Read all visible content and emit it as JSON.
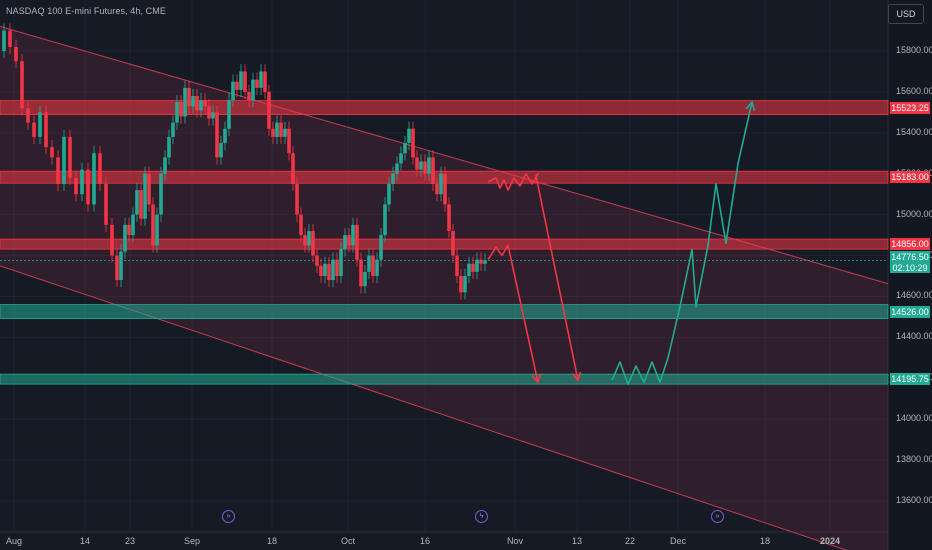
{
  "header": {
    "symbol_title": "NASDAQ 100 E-mini Futures, 4h, CME",
    "currency_button": "USD"
  },
  "colors": {
    "background": "#161a25",
    "bear": "#f23645",
    "bull": "#22ab94",
    "channel": "#b73a4f",
    "text": "#b2b5be"
  },
  "events": [
    {
      "icon": "earnings-icon",
      "glyph": "»"
    },
    {
      "icon": "flash-icon",
      "glyph": "ϟ"
    },
    {
      "icon": "earnings-icon",
      "glyph": "»"
    }
  ],
  "chart_data": {
    "type": "candlestick",
    "symbol": "NASDAQ 100 E-mini Futures",
    "timeframe": "4h",
    "exchange": "CME",
    "ylim": [
      13600,
      15950
    ],
    "y_ticks": [
      "15800.00",
      "15600.00",
      "15400.00",
      "15200.00",
      "15000.00",
      "14800.00",
      "14600.00",
      "14400.00",
      "14200.00",
      "14000.00",
      "13800.00",
      "13600.00"
    ],
    "x_ticks": [
      "Aug",
      "14",
      "23",
      "Sep",
      "18",
      "Oct",
      "16",
      "Nov",
      "13",
      "22",
      "Dec",
      "18",
      "2024"
    ],
    "price_path": [
      [
        0,
        15800
      ],
      [
        6,
        15900
      ],
      [
        12,
        15820
      ],
      [
        18,
        15750
      ],
      [
        24,
        15520
      ],
      [
        30,
        15450
      ],
      [
        36,
        15380
      ],
      [
        42,
        15500
      ],
      [
        48,
        15330
      ],
      [
        54,
        15280
      ],
      [
        60,
        15150
      ],
      [
        66,
        15380
      ],
      [
        72,
        15180
      ],
      [
        78,
        15100
      ],
      [
        84,
        15220
      ],
      [
        90,
        15050
      ],
      [
        96,
        15300
      ],
      [
        102,
        15150
      ],
      [
        108,
        14950
      ],
      [
        114,
        14800
      ],
      [
        118,
        14680
      ],
      [
        122,
        14820
      ],
      [
        126,
        14950
      ],
      [
        130,
        14900
      ],
      [
        134,
        15000
      ],
      [
        138,
        15120
      ],
      [
        142,
        14980
      ],
      [
        146,
        15200
      ],
      [
        150,
        15050
      ],
      [
        154,
        14850
      ],
      [
        158,
        15000
      ],
      [
        162,
        15200
      ],
      [
        166,
        15280
      ],
      [
        170,
        15380
      ],
      [
        174,
        15450
      ],
      [
        178,
        15550
      ],
      [
        182,
        15480
      ],
      [
        186,
        15620
      ],
      [
        190,
        15530
      ],
      [
        194,
        15580
      ],
      [
        198,
        15510
      ],
      [
        202,
        15560
      ],
      [
        206,
        15530
      ],
      [
        210,
        15470
      ],
      [
        214,
        15500
      ],
      [
        218,
        15280
      ],
      [
        222,
        15350
      ],
      [
        226,
        15420
      ],
      [
        230,
        15560
      ],
      [
        234,
        15650
      ],
      [
        238,
        15610
      ],
      [
        242,
        15700
      ],
      [
        246,
        15600
      ],
      [
        250,
        15560
      ],
      [
        254,
        15660
      ],
      [
        258,
        15620
      ],
      [
        262,
        15700
      ],
      [
        266,
        15600
      ],
      [
        270,
        15420
      ],
      [
        274,
        15380
      ],
      [
        278,
        15450
      ],
      [
        282,
        15380
      ],
      [
        286,
        15420
      ],
      [
        290,
        15300
      ],
      [
        294,
        15150
      ],
      [
        298,
        15000
      ],
      [
        302,
        14900
      ],
      [
        306,
        14850
      ],
      [
        310,
        14920
      ],
      [
        314,
        14800
      ],
      [
        318,
        14750
      ],
      [
        322,
        14700
      ],
      [
        326,
        14760
      ],
      [
        330,
        14680
      ],
      [
        334,
        14780
      ],
      [
        338,
        14700
      ],
      [
        342,
        14830
      ],
      [
        346,
        14900
      ],
      [
        350,
        14850
      ],
      [
        354,
        14950
      ],
      [
        358,
        14780
      ],
      [
        362,
        14650
      ],
      [
        366,
        14720
      ],
      [
        370,
        14800
      ],
      [
        374,
        14700
      ],
      [
        378,
        14780
      ],
      [
        382,
        14900
      ],
      [
        386,
        15050
      ],
      [
        390,
        15150
      ],
      [
        394,
        15200
      ],
      [
        398,
        15250
      ],
      [
        402,
        15300
      ],
      [
        406,
        15350
      ],
      [
        410,
        15420
      ],
      [
        414,
        15280
      ],
      [
        418,
        15220
      ],
      [
        422,
        15260
      ],
      [
        426,
        15200
      ],
      [
        430,
        15280
      ],
      [
        434,
        15150
      ],
      [
        438,
        15100
      ],
      [
        442,
        15200
      ],
      [
        446,
        15050
      ],
      [
        450,
        14920
      ],
      [
        454,
        14800
      ],
      [
        458,
        14700
      ],
      [
        462,
        14620
      ],
      [
        466,
        14700
      ],
      [
        470,
        14760
      ],
      [
        474,
        14720
      ],
      [
        478,
        14780
      ],
      [
        482,
        14760
      ],
      [
        486,
        14776.5
      ]
    ],
    "levels": [
      {
        "type": "resistance",
        "value": 15523.25,
        "label": "15523.25"
      },
      {
        "type": "resistance",
        "value": 15183.0,
        "label": "15183.00"
      },
      {
        "type": "resistance",
        "value": 14856.0,
        "label": "14856.00"
      },
      {
        "type": "support",
        "value": 14526.0,
        "label": "14526.00"
      },
      {
        "type": "support",
        "value": 14195.75,
        "label": "14195.75"
      }
    ],
    "last_price": {
      "value": 14776.5,
      "label": "14776.50",
      "countdown": "02:10:29"
    },
    "channel": {
      "upper": [
        [
          0,
          15920
        ],
        [
          932,
          14600
        ]
      ],
      "lower": [
        [
          0,
          14750
        ],
        [
          700,
          13600
        ]
      ]
    },
    "projections": [
      {
        "name": "bear-path-1",
        "color": "#f23645",
        "points": [
          [
            488,
            15160
          ],
          [
            496,
            15180
          ],
          [
            500,
            15130
          ],
          [
            504,
            15170
          ],
          [
            508,
            15120
          ],
          [
            514,
            15180
          ],
          [
            520,
            15140
          ],
          [
            526,
            15200
          ],
          [
            532,
            15150
          ],
          [
            538,
            15200
          ],
          [
            536,
            15190
          ],
          [
            578,
            14190
          ]
        ]
      },
      {
        "name": "bear-path-2",
        "color": "#f23645",
        "points": [
          [
            488,
            14780
          ],
          [
            496,
            14840
          ],
          [
            502,
            14800
          ],
          [
            508,
            14850
          ],
          [
            538,
            14180
          ]
        ]
      },
      {
        "name": "bull-path",
        "color": "#22ab94",
        "points": [
          [
            612,
            14190
          ],
          [
            620,
            14280
          ],
          [
            628,
            14170
          ],
          [
            636,
            14260
          ],
          [
            644,
            14180
          ],
          [
            652,
            14280
          ],
          [
            660,
            14180
          ],
          [
            668,
            14300
          ],
          [
            680,
            14550
          ],
          [
            692,
            14830
          ],
          [
            696,
            14550
          ],
          [
            708,
            14850
          ],
          [
            716,
            15150
          ],
          [
            726,
            14860
          ],
          [
            738,
            15250
          ],
          [
            752,
            15550
          ]
        ]
      }
    ]
  }
}
